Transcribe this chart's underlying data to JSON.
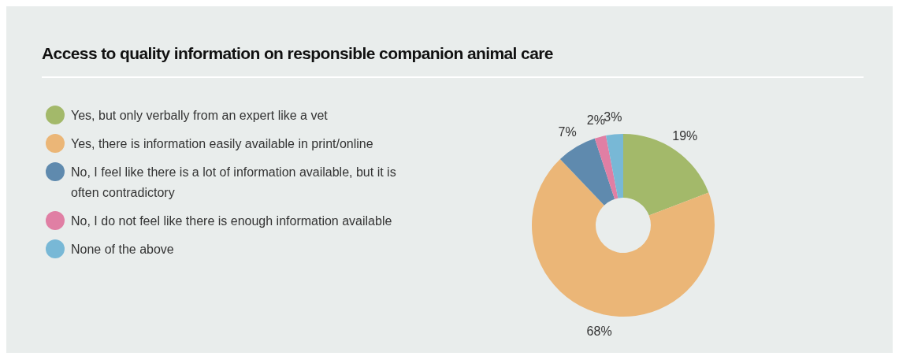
{
  "chart_data": {
    "type": "donut",
    "title": "Access to quality information on responsible companion animal care",
    "categories": [
      "Yes, but only verbally from an expert like a vet",
      "Yes, there is information easily available in print/online",
      "No, I feel like there is a lot of information available, but it is often contradictory",
      "No, I do not feel like there is enough information available",
      "None of the above"
    ],
    "values": [
      19,
      68,
      7,
      2,
      3
    ],
    "colors": [
      "#a3b96a",
      "#ebb677",
      "#5f8aae",
      "#e07fa4",
      "#78b8d6"
    ],
    "value_labels": [
      "19%",
      "68%",
      "7%",
      "2%",
      "3%"
    ],
    "legend": "left"
  }
}
